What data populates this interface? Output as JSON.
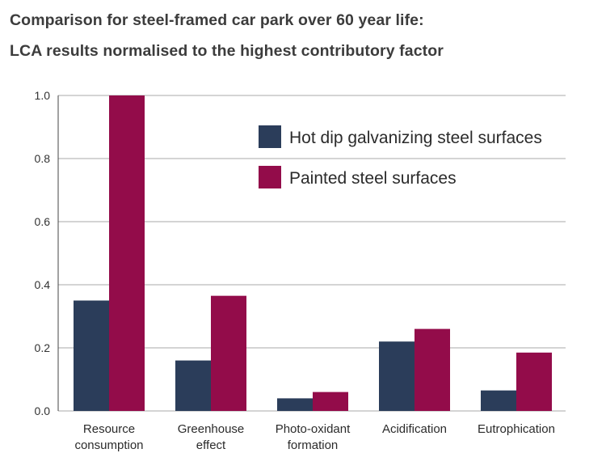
{
  "chart_data": {
    "type": "bar",
    "title": "Comparison for steel-framed car park over 60 year life:",
    "subtitle": "LCA results normalised to the highest contributory factor",
    "categories": [
      [
        "Resource",
        "consumption"
      ],
      [
        "Greenhouse",
        "effect"
      ],
      [
        "Photo-oxidant",
        "formation"
      ],
      [
        "Acidification"
      ],
      [
        "Eutrophication"
      ]
    ],
    "series": [
      {
        "name": "Hot dip galvanizing steel surfaces",
        "color": "#2b3d5a",
        "values": [
          0.35,
          0.16,
          0.04,
          0.22,
          0.065
        ]
      },
      {
        "name": "Painted steel surfaces",
        "color": "#930c4a",
        "values": [
          1.0,
          0.365,
          0.06,
          0.26,
          0.185
        ]
      }
    ],
    "ylim": [
      0,
      1.0
    ],
    "yticks": [
      "0.0",
      "0.2",
      "0.4",
      "0.6",
      "0.8",
      "1.0"
    ],
    "grid": true,
    "legend_position": "top-right"
  }
}
